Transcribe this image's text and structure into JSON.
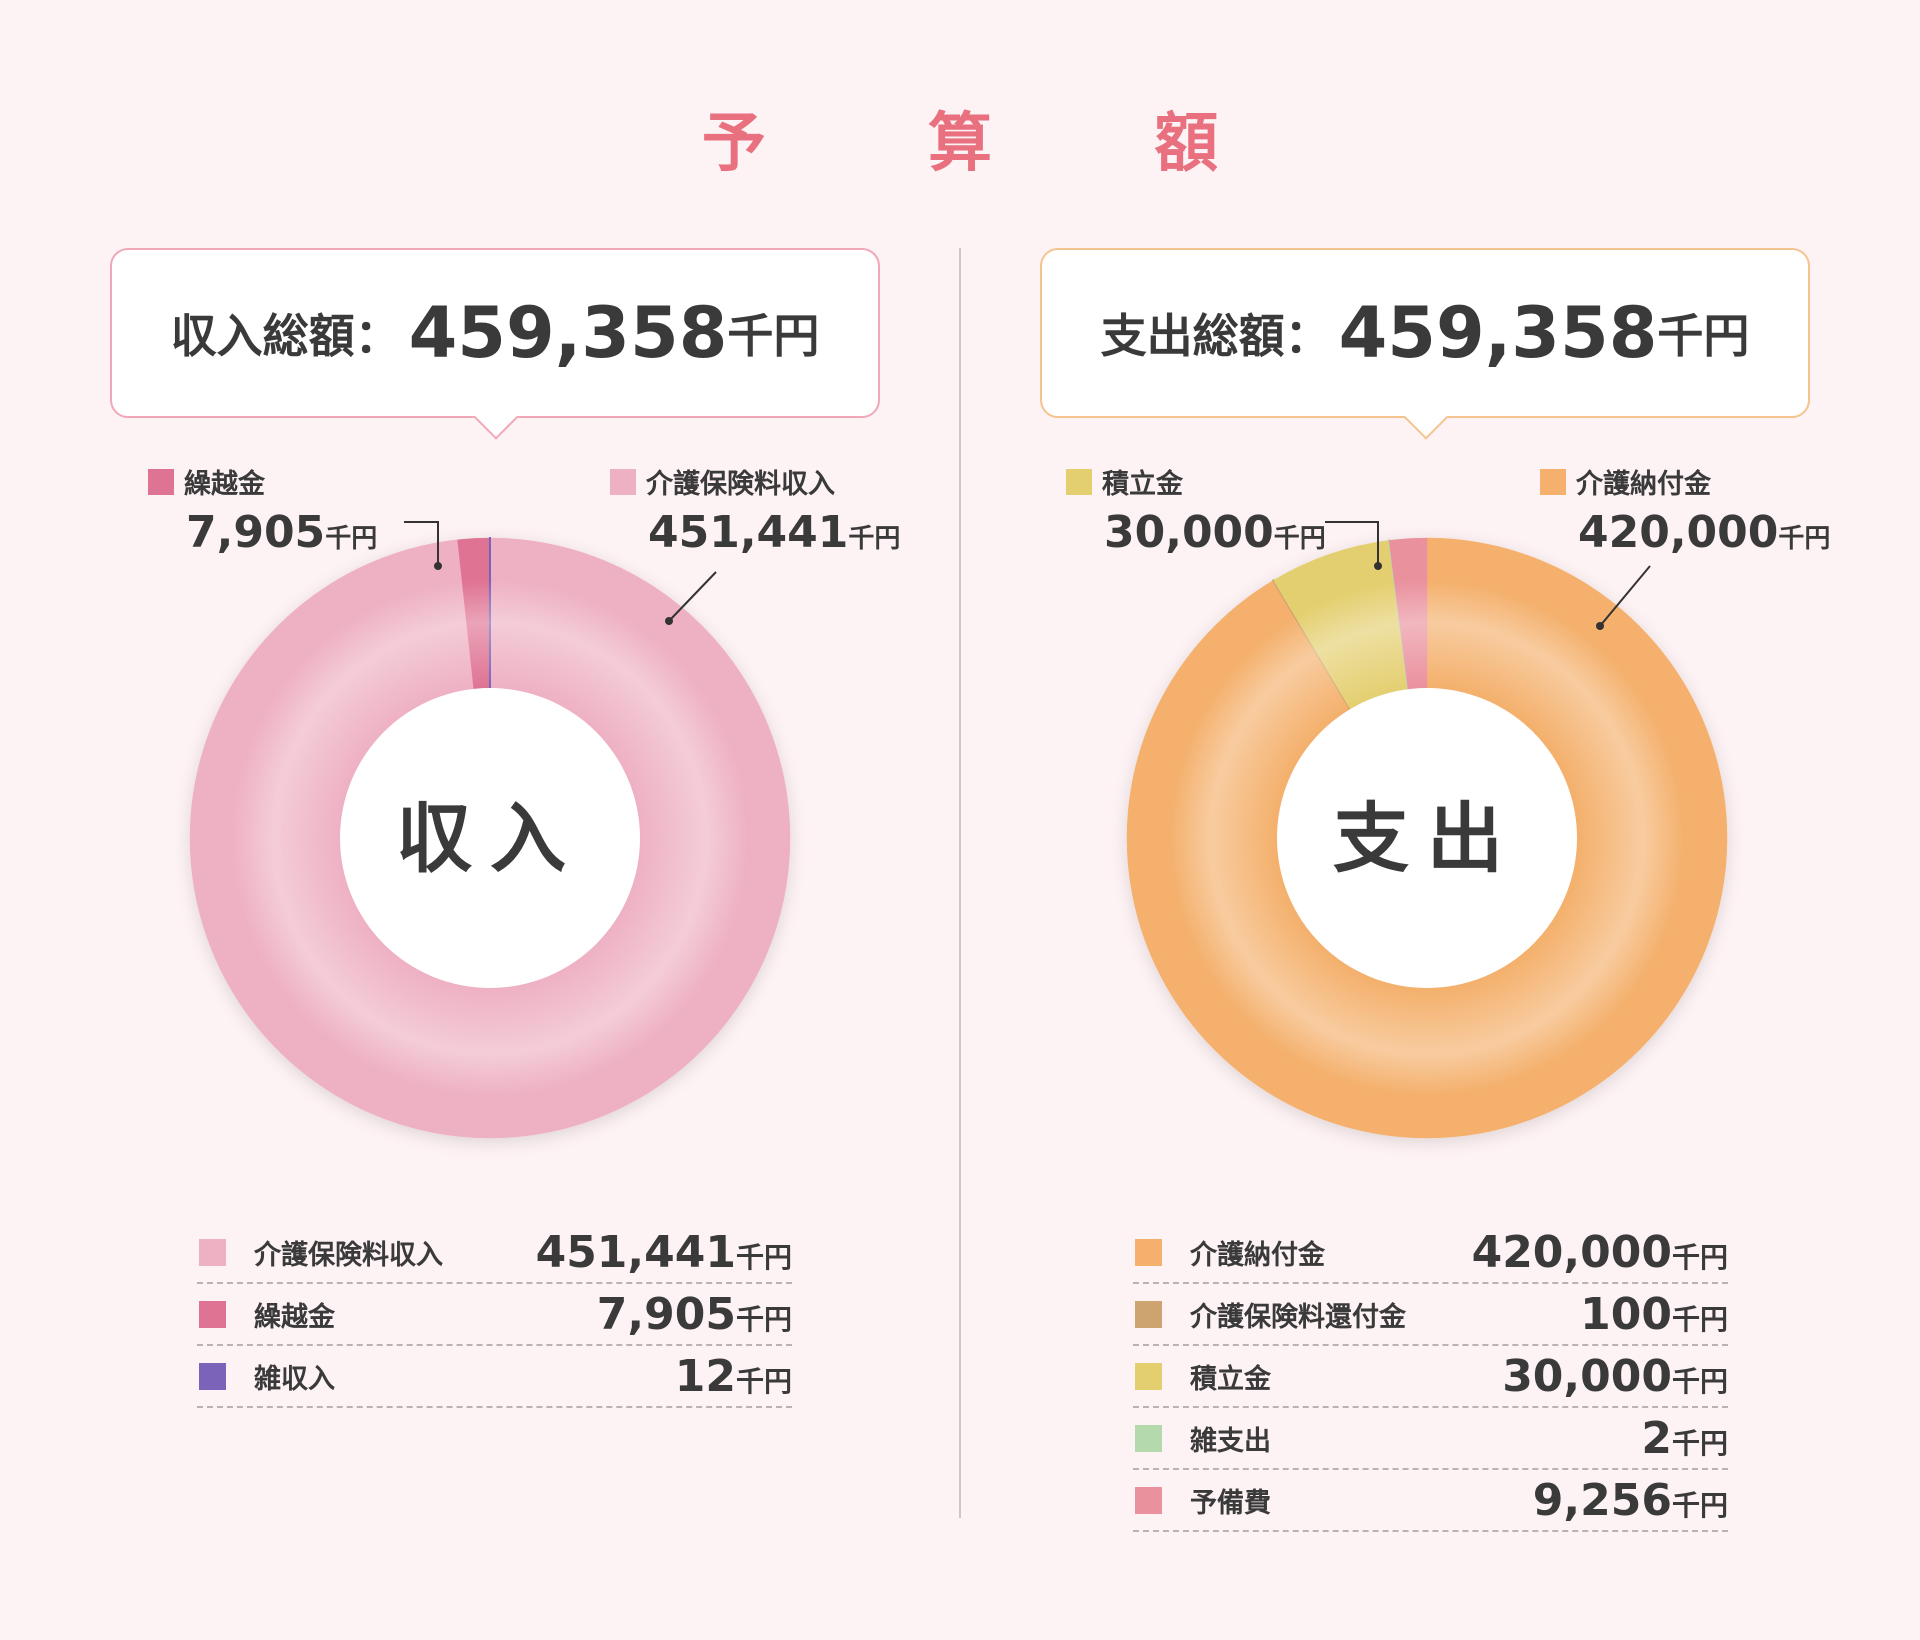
{
  "title": "予 算 額",
  "unit": "千円",
  "income": {
    "total_label": "収入総額：",
    "total_value": "459,358",
    "center_label": "収入",
    "accent_border": "#f0a8b8",
    "callouts": [
      {
        "label": "繰越金",
        "value": "7,905",
        "color": "#df7393"
      },
      {
        "label": "介護保険料収入",
        "value": "451,441",
        "color": "#eeb1c3"
      }
    ]
  },
  "expense": {
    "total_label": "支出総額：",
    "total_value": "459,358",
    "center_label": "支出",
    "accent_border": "#f4c38e",
    "callouts": [
      {
        "label": "積立金",
        "value": "30,000",
        "color": "#e4cf70"
      },
      {
        "label": "介護納付金",
        "value": "420,000",
        "color": "#f4b06c"
      }
    ]
  },
  "chart_data": [
    {
      "type": "pie",
      "title": "収入",
      "categories": [
        "介護保険料収入",
        "繰越金",
        "雑収入"
      ],
      "values": [
        451441,
        7905,
        12
      ],
      "value_labels": [
        "451,441",
        "7,905",
        "12"
      ],
      "colors": [
        "#eeb1c3",
        "#df7393",
        "#7a63b8"
      ],
      "unit": "千円",
      "legend": "bottom"
    },
    {
      "type": "pie",
      "title": "支出",
      "categories": [
        "介護納付金",
        "介護保険料還付金",
        "積立金",
        "雑支出",
        "予備費"
      ],
      "values": [
        420000,
        100,
        30000,
        2,
        9256
      ],
      "value_labels": [
        "420,000",
        "100",
        "30,000",
        "2",
        "9,256"
      ],
      "colors": [
        "#f4b06c",
        "#cda36f",
        "#e4cf70",
        "#b4d9ad",
        "#ea919e"
      ],
      "unit": "千円",
      "legend": "bottom"
    }
  ]
}
